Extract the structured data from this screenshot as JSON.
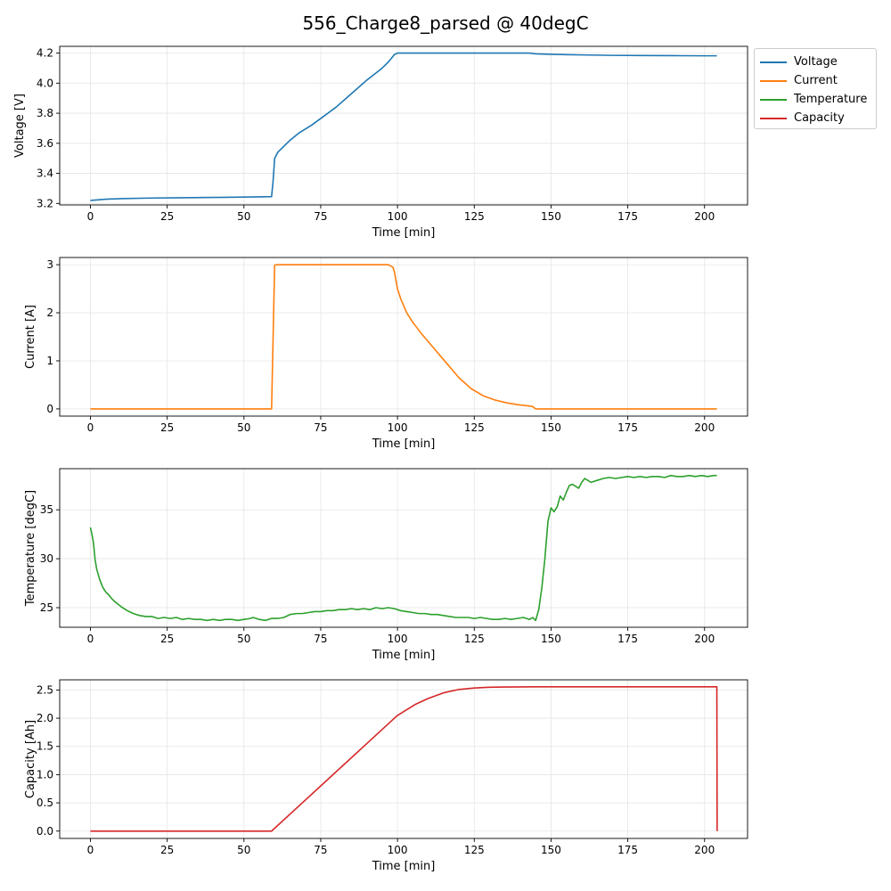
{
  "title": "556_Charge8_parsed @ 40degC",
  "colors": {
    "voltage": "#1f77b4",
    "current": "#ff7f0e",
    "temperature": "#2ca02c",
    "capacity": "#d62728",
    "grid": "#e5e5e5",
    "axis": "#000000"
  },
  "legend": [
    {
      "name": "Voltage",
      "color": "#1f77b4"
    },
    {
      "name": "Current",
      "color": "#ff7f0e"
    },
    {
      "name": "Temperature",
      "color": "#2ca02c"
    },
    {
      "name": "Capacity",
      "color": "#d62728"
    }
  ],
  "chart_data": [
    {
      "type": "line",
      "series_name": "Voltage",
      "xlabel": "Time [min]",
      "ylabel": "Voltage [V]",
      "xlim": [
        -10,
        214
      ],
      "ylim": [
        3.19,
        4.245
      ],
      "xticks": [
        0,
        25,
        50,
        75,
        100,
        125,
        150,
        175,
        200
      ],
      "yticks": [
        3.2,
        3.4,
        3.6,
        3.8,
        4.0,
        4.2
      ],
      "ytick_labels": [
        "3.2",
        "3.4",
        "3.6",
        "3.8",
        "4.0",
        "4.2"
      ],
      "grid": true,
      "legend_position": "outside-top-right",
      "x": [
        0,
        2,
        5,
        10,
        20,
        30,
        40,
        50,
        59,
        59.5,
        60,
        61,
        62,
        65,
        68,
        72,
        76,
        78,
        80,
        85,
        90,
        95,
        97,
        99,
        100,
        110,
        120,
        130,
        143,
        145,
        150,
        160,
        170,
        180,
        190,
        200,
        204
      ],
      "y": [
        3.22,
        3.223,
        3.228,
        3.232,
        3.236,
        3.238,
        3.24,
        3.242,
        3.245,
        3.35,
        3.5,
        3.54,
        3.56,
        3.62,
        3.67,
        3.72,
        3.78,
        3.81,
        3.84,
        3.93,
        4.02,
        4.1,
        4.14,
        4.19,
        4.2,
        4.2,
        4.2,
        4.2,
        4.2,
        4.195,
        4.192,
        4.188,
        4.185,
        4.184,
        4.183,
        4.182,
        4.182
      ]
    },
    {
      "type": "line",
      "series_name": "Current",
      "xlabel": "Time [min]",
      "ylabel": "Current [A]",
      "xlim": [
        -10,
        214
      ],
      "ylim": [
        -0.15,
        3.15
      ],
      "xticks": [
        0,
        25,
        50,
        75,
        100,
        125,
        150,
        175,
        200
      ],
      "yticks": [
        0,
        1,
        2,
        3
      ],
      "ytick_labels": [
        "0",
        "1",
        "2",
        "3"
      ],
      "grid": true,
      "x": [
        0,
        59,
        59.5,
        60,
        60.5,
        61,
        70,
        80,
        90,
        97,
        98.5,
        99,
        100,
        101,
        103,
        105,
        108,
        112,
        116,
        120,
        124,
        128,
        132,
        136,
        140,
        143,
        144,
        145,
        150,
        160,
        180,
        204
      ],
      "y": [
        0,
        0,
        1.5,
        2.99,
        3.0,
        3.0,
        3.0,
        3.0,
        3.0,
        3.0,
        2.95,
        2.85,
        2.5,
        2.3,
        2.0,
        1.8,
        1.55,
        1.25,
        0.95,
        0.65,
        0.42,
        0.27,
        0.18,
        0.12,
        0.08,
        0.06,
        0.05,
        0.0,
        0.0,
        0.0,
        0.0,
        0.0
      ]
    },
    {
      "type": "line",
      "series_name": "Temperature",
      "xlabel": "Time [min]",
      "ylabel": "Temperature [degC]",
      "xlim": [
        -10,
        214
      ],
      "ylim": [
        23.0,
        39.2
      ],
      "xticks": [
        0,
        25,
        50,
        75,
        100,
        125,
        150,
        175,
        200
      ],
      "yticks": [
        25,
        30,
        35
      ],
      "ytick_labels": [
        "25",
        "30",
        "35"
      ],
      "grid": true,
      "x": [
        0,
        0.5,
        1,
        1.5,
        2,
        3,
        4,
        5,
        6,
        7,
        8,
        10,
        12,
        14,
        16,
        18,
        20,
        22,
        24,
        26,
        28,
        30,
        32,
        34,
        36,
        38,
        40,
        42,
        44,
        46,
        48,
        50,
        52,
        53,
        55,
        57,
        59,
        61,
        63,
        65,
        67,
        69,
        71,
        73,
        75,
        77,
        79,
        81,
        83,
        85,
        87,
        89,
        91,
        93,
        95,
        97,
        99,
        101,
        103,
        105,
        107,
        109,
        111,
        113,
        115,
        117,
        119,
        121,
        123,
        125,
        127,
        129,
        131,
        133,
        135,
        137,
        139,
        141,
        142,
        143,
        144,
        145,
        146,
        147,
        148,
        149,
        150,
        151,
        152,
        153,
        154,
        155,
        156,
        157,
        158,
        159,
        160,
        161,
        162,
        163,
        165,
        167,
        169,
        171,
        173,
        175,
        177,
        179,
        181,
        183,
        185,
        187,
        189,
        191,
        193,
        195,
        197,
        199,
        201,
        203,
        204
      ],
      "y": [
        33.2,
        32.5,
        31.6,
        30.0,
        29.0,
        27.9,
        27.1,
        26.6,
        26.3,
        25.9,
        25.6,
        25.1,
        24.7,
        24.4,
        24.2,
        24.1,
        24.1,
        23.9,
        24.0,
        23.9,
        24.0,
        23.8,
        23.9,
        23.8,
        23.8,
        23.7,
        23.8,
        23.7,
        23.8,
        23.8,
        23.7,
        23.8,
        23.9,
        24.0,
        23.8,
        23.7,
        23.9,
        23.9,
        24.0,
        24.3,
        24.4,
        24.4,
        24.5,
        24.6,
        24.6,
        24.7,
        24.7,
        24.8,
        24.8,
        24.9,
        24.8,
        24.9,
        24.8,
        25.0,
        24.9,
        25.0,
        24.9,
        24.7,
        24.6,
        24.5,
        24.4,
        24.4,
        24.3,
        24.3,
        24.2,
        24.1,
        24.0,
        24.0,
        24.0,
        23.9,
        24.0,
        23.9,
        23.8,
        23.8,
        23.9,
        23.8,
        23.9,
        24.0,
        23.9,
        23.8,
        24.0,
        23.7,
        24.8,
        27.0,
        30.0,
        33.8,
        35.2,
        34.8,
        35.3,
        36.4,
        36.0,
        36.8,
        37.5,
        37.6,
        37.4,
        37.2,
        37.8,
        38.2,
        38.0,
        37.8,
        38.0,
        38.2,
        38.3,
        38.2,
        38.3,
        38.4,
        38.3,
        38.4,
        38.3,
        38.4,
        38.4,
        38.3,
        38.5,
        38.4,
        38.4,
        38.5,
        38.4,
        38.5,
        38.4,
        38.5,
        38.5
      ]
    },
    {
      "type": "line",
      "series_name": "Capacity",
      "xlabel": "Time [min]",
      "ylabel": "Capacity [Ah]",
      "xlim": [
        -10,
        214
      ],
      "ylim": [
        -0.13,
        2.68
      ],
      "xticks": [
        0,
        25,
        50,
        75,
        100,
        125,
        150,
        175,
        200
      ],
      "yticks": [
        0.0,
        0.5,
        1.0,
        1.5,
        2.0,
        2.5
      ],
      "ytick_labels": [
        "0.0",
        "0.5",
        "1.0",
        "1.5",
        "2.0",
        "2.5"
      ],
      "grid": true,
      "x": [
        0,
        59,
        70,
        80,
        90,
        99,
        100,
        103,
        106,
        110,
        115,
        120,
        125,
        130,
        135,
        140,
        145,
        150,
        170,
        190,
        204,
        204.1
      ],
      "y": [
        0,
        0,
        0.55,
        1.05,
        1.55,
        2.0,
        2.05,
        2.15,
        2.25,
        2.35,
        2.45,
        2.51,
        2.535,
        2.548,
        2.553,
        2.555,
        2.556,
        2.556,
        2.556,
        2.556,
        2.556,
        0
      ]
    }
  ]
}
